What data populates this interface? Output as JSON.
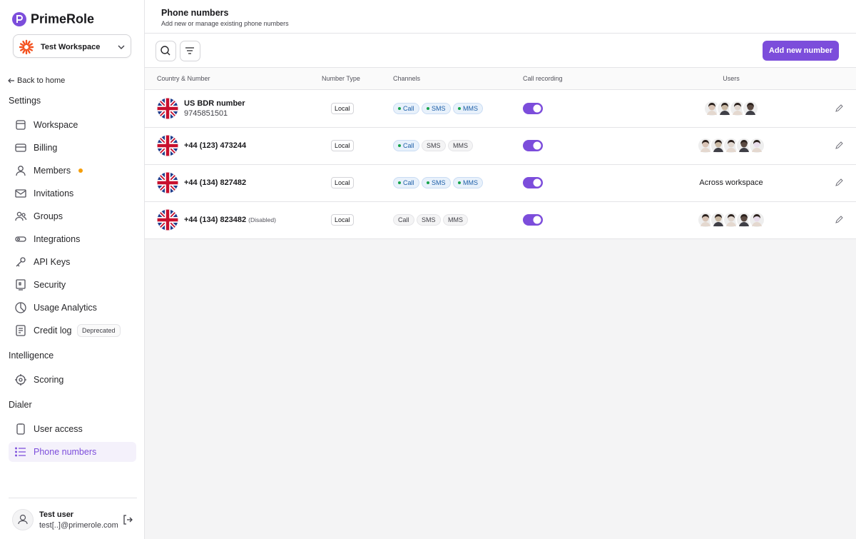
{
  "sidebar": {
    "brand": "PrimeRole",
    "workspace": "Test Workspace",
    "back": "Back to home",
    "sections": [
      {
        "title": "Settings",
        "items": [
          {
            "label": "Workspace"
          },
          {
            "label": "Billing"
          },
          {
            "label": "Members",
            "dot": true
          },
          {
            "label": "Invitations"
          },
          {
            "label": "Groups"
          },
          {
            "label": "Integrations"
          },
          {
            "label": "API Keys"
          },
          {
            "label": "Security"
          },
          {
            "label": "Usage Analytics"
          },
          {
            "label": "Credit log",
            "badge": "Deprecated"
          }
        ]
      },
      {
        "title": "Intelligence",
        "items": [
          {
            "label": "Scoring"
          }
        ]
      },
      {
        "title": "Dialer",
        "items": [
          {
            "label": "User access"
          },
          {
            "label": "Phone numbers",
            "active": true
          }
        ]
      }
    ],
    "user": {
      "name": "Test user",
      "email": "test[..]@primerole.com"
    }
  },
  "header": {
    "title": "Phone numbers",
    "subtitle": "Add new or manage existing phone numbers"
  },
  "toolbar": {
    "add_button": "Add new number"
  },
  "table": {
    "columns": [
      "Country & Number",
      "Number Type",
      "Channels",
      "Call recording",
      "Users"
    ],
    "rows": [
      {
        "name": "US BDR number",
        "number": "9745851501",
        "type": "Local",
        "channels": [
          {
            "label": "Call",
            "active": true
          },
          {
            "label": "SMS",
            "active": true
          },
          {
            "label": "MMS",
            "active": true
          }
        ],
        "recording": true,
        "avatars": 4
      },
      {
        "name": "+44 (123) 473244",
        "type": "Local",
        "channels": [
          {
            "label": "Call",
            "active": true
          },
          {
            "label": "SMS",
            "active": false
          },
          {
            "label": "MMS",
            "active": false
          }
        ],
        "recording": true,
        "avatars": 5
      },
      {
        "name": "+44 (134) 827482",
        "type": "Local",
        "channels": [
          {
            "label": "Call",
            "active": true
          },
          {
            "label": "SMS",
            "active": true
          },
          {
            "label": "MMS",
            "active": true
          }
        ],
        "recording": true,
        "users_text": "Across workspace"
      },
      {
        "name": "+44 (134) 823482",
        "note": "(Disabled)",
        "type": "Local",
        "channels": [
          {
            "label": "Call",
            "active": false
          },
          {
            "label": "SMS",
            "active": false
          },
          {
            "label": "MMS",
            "active": false
          }
        ],
        "recording": true,
        "avatars": 5
      }
    ]
  }
}
